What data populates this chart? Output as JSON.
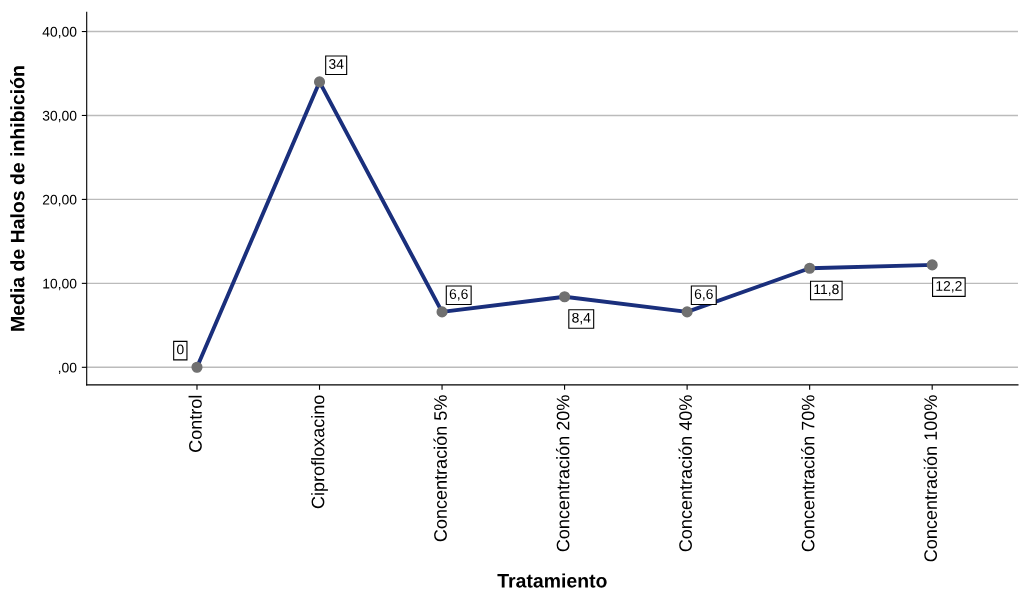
{
  "chart_data": {
    "type": "line",
    "xlabel": "Tratamiento",
    "ylabel": "Media de Halos de inhibición",
    "categories": [
      "Control",
      "Ciprofloxacino",
      "Concentración 5%",
      "Concentración 20%",
      "Concentración 40%",
      "Concentración 70%",
      "Concentración 100%"
    ],
    "values": [
      0,
      34,
      6.6,
      8.4,
      6.6,
      11.8,
      12.2
    ],
    "value_labels": [
      "0",
      "34",
      "6,6",
      "8,4",
      "6,6",
      "11,8",
      "12,2"
    ],
    "color": "#1a2f7c",
    "marker": "circle",
    "grid": "y",
    "ylim": [
      -2.1,
      42.3
    ],
    "yticks": [
      {
        "value": 0,
        "label": ",00"
      },
      {
        "value": 10,
        "label": "10,00"
      },
      {
        "value": 20,
        "label": "20,00"
      },
      {
        "value": 30,
        "label": "30,00"
      },
      {
        "value": 40,
        "label": "40,00"
      }
    ]
  }
}
